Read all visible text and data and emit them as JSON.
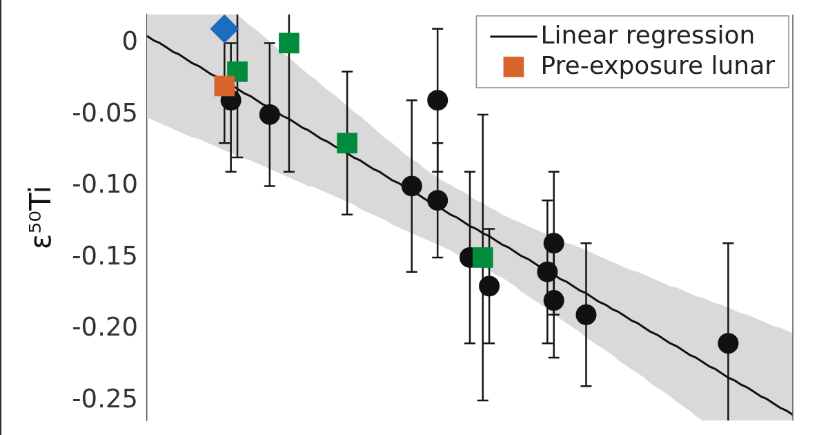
{
  "chart_data": {
    "type": "scatter",
    "ylabel": "ε⁵⁰Ti",
    "categories": [
      null,
      null,
      null,
      null,
      null,
      null,
      null,
      null,
      null,
      null,
      null,
      null,
      null,
      null,
      null,
      null,
      null,
      null,
      null,
      null,
      null,
      null,
      null,
      null,
      null,
      null,
      null,
      null,
      null,
      null,
      null,
      null,
      null,
      null,
      null,
      null,
      null,
      null,
      null,
      null,
      null,
      null,
      null,
      null,
      null,
      null,
      null,
      null,
      null,
      null,
      null,
      null,
      null,
      null,
      null,
      null,
      null,
      null,
      null,
      null,
      null,
      null,
      null,
      null,
      null,
      null,
      null,
      null,
      null,
      null,
      null,
      null,
      null,
      null,
      null,
      null,
      null,
      null,
      null,
      null,
      null,
      null,
      null,
      null,
      null,
      null,
      null,
      null,
      null,
      null,
      null,
      null,
      null,
      null,
      null,
      null,
      null,
      null,
      null,
      null,
      null
    ],
    "ylim": [
      -0.264,
      0.02
    ],
    "yticks": [
      0,
      -0.05,
      {
        "value": -0.1,
        "label": "-0.10"
      },
      -0.15,
      {
        "value": -0.2,
        "label": "-0.20"
      },
      -0.25
    ],
    "tick_labels": "y",
    "grid": false,
    "legend": "top right",
    "series": [
      {
        "name": "Linear regression",
        "type": "line",
        "color": "#111111",
        "marker": "none",
        "line_style": "solid",
        "values": [
          0.005,
          0.002,
          0,
          -0.003,
          -0.006,
          -0.008,
          -0.011,
          -0.014,
          -0.016,
          -0.019,
          -0.022,
          -0.024,
          null,
          null,
          -0.032,
          -0.035,
          -0.037,
          -0.04,
          -0.043,
          -0.045,
          -0.048,
          -0.051,
          -0.053,
          -0.056,
          -0.059,
          -0.061,
          -0.064,
          -0.067,
          -0.069,
          -0.072,
          null,
          -0.077,
          -0.08,
          -0.082,
          -0.085,
          -0.088,
          -0.09,
          -0.093,
          -0.096,
          -0.098,
          -0.101,
          -0.104,
          -0.106,
          -0.109,
          -0.112,
          -0.114,
          -0.117,
          -0.12,
          -0.122,
          -0.125,
          -0.128,
          -0.13,
          -0.133,
          -0.135,
          -0.138,
          -0.141,
          -0.143,
          -0.146,
          -0.149,
          -0.151,
          -0.154,
          -0.157,
          -0.159,
          -0.162,
          -0.165,
          -0.167,
          -0.17,
          -0.173,
          -0.175,
          -0.178,
          -0.181,
          -0.183,
          -0.186,
          -0.188,
          -0.191,
          -0.194,
          -0.196,
          -0.199,
          -0.202,
          -0.204,
          -0.207,
          -0.21,
          -0.212,
          -0.215,
          -0.218,
          -0.22,
          -0.223,
          -0.226,
          -0.228,
          -0.231,
          -0.234,
          -0.236,
          -0.239,
          -0.241,
          -0.244,
          -0.247,
          -0.249,
          -0.252,
          -0.255,
          -0.257,
          -0.26
        ],
        "upper": [
          0.02,
          0.02,
          0.02,
          0.02,
          0.02,
          0.02,
          0.02,
          0.02,
          0.02,
          0.02,
          0.02,
          0.02,
          0.02,
          0.02,
          0.02,
          0.016,
          0.012,
          0.009,
          0.005,
          0.001,
          -0.003,
          -0.007,
          -0.01,
          -0.014,
          -0.018,
          -0.022,
          -0.025,
          -0.029,
          -0.033,
          -0.036,
          -0.04,
          -0.044,
          -0.048,
          -0.051,
          -0.055,
          -0.059,
          -0.063,
          -0.067,
          -0.07,
          -0.074,
          -0.078,
          -0.081,
          -0.084,
          -0.088,
          -0.091,
          -0.094,
          -0.097,
          -0.099,
          -0.102,
          -0.104,
          -0.107,
          -0.11,
          -0.112,
          -0.115,
          -0.117,
          -0.12,
          -0.122,
          -0.124,
          -0.126,
          -0.128,
          -0.13,
          -0.132,
          -0.134,
          -0.136,
          -0.138,
          -0.14,
          -0.141,
          -0.143,
          -0.145,
          -0.147,
          -0.149,
          -0.151,
          -0.153,
          -0.155,
          -0.157,
          -0.159,
          -0.16,
          -0.162,
          -0.164,
          -0.166,
          -0.168,
          -0.17,
          -0.171,
          -0.173,
          -0.175,
          -0.177,
          -0.178,
          -0.18,
          -0.182,
          -0.183,
          -0.185,
          -0.187,
          -0.189,
          -0.19,
          -0.192,
          -0.194,
          -0.196,
          -0.198,
          -0.199,
          -0.201,
          -0.203
        ],
        "lower": [
          -0.052,
          -0.054,
          -0.056,
          -0.058,
          -0.06,
          -0.062,
          -0.064,
          -0.066,
          -0.067,
          -0.069,
          -0.071,
          -0.073,
          -0.075,
          -0.077,
          -0.079,
          -0.081,
          -0.082,
          -0.084,
          -0.086,
          -0.088,
          -0.09,
          -0.092,
          -0.094,
          -0.096,
          -0.098,
          -0.1,
          -0.101,
          -0.103,
          -0.105,
          -0.107,
          -0.109,
          -0.111,
          -0.113,
          -0.116,
          -0.118,
          -0.12,
          -0.122,
          -0.124,
          -0.127,
          -0.129,
          -0.131,
          -0.133,
          -0.135,
          -0.137,
          -0.139,
          -0.141,
          -0.143,
          -0.145,
          -0.148,
          -0.15,
          -0.152,
          -0.154,
          -0.157,
          -0.159,
          -0.162,
          -0.164,
          -0.167,
          -0.17,
          -0.174,
          -0.177,
          -0.18,
          -0.183,
          -0.186,
          -0.19,
          -0.193,
          -0.196,
          -0.199,
          -0.202,
          -0.206,
          -0.209,
          -0.212,
          -0.215,
          -0.218,
          -0.222,
          -0.225,
          -0.228,
          -0.231,
          -0.234,
          -0.238,
          -0.241,
          -0.244,
          -0.247,
          -0.251,
          -0.254,
          -0.257,
          -0.261,
          -0.264,
          -0.264,
          -0.264,
          -0.264,
          -0.264,
          -0.264,
          -0.264,
          -0.264,
          -0.264,
          -0.264,
          -0.264,
          -0.264,
          -0.264,
          -0.264,
          -0.264
        ]
      },
      {
        "color": "#111111",
        "marker": "circle",
        "values": [
          null,
          null,
          null,
          null,
          null,
          null,
          null,
          null,
          null,
          null,
          null,
          null,
          null,
          -0.04,
          null,
          null,
          null,
          null,
          null,
          -0.05,
          null,
          null,
          null,
          null,
          null,
          null,
          null,
          null,
          null,
          null,
          null,
          null,
          null,
          null,
          null,
          null,
          null,
          null,
          null,
          null,
          null,
          -0.1,
          null,
          null,
          null,
          -0.04,
          null,
          null,
          null,
          null,
          -0.15,
          null,
          null,
          -0.17,
          null,
          null,
          null,
          null,
          null,
          null,
          null,
          null,
          -0.16,
          -0.14,
          null,
          null,
          null,
          null,
          -0.19,
          null,
          null,
          null,
          null,
          null,
          null,
          null,
          null,
          null,
          null,
          null,
          null,
          null,
          null,
          null,
          null,
          null,
          null,
          null,
          null,
          null,
          -0.21,
          null,
          null,
          null,
          null,
          null,
          null,
          null,
          null,
          null,
          null
        ],
        "errors": [
          null,
          null,
          null,
          null,
          null,
          null,
          null,
          null,
          null,
          null,
          null,
          null,
          null,
          [
            -0.09,
            0
          ],
          null,
          null,
          null,
          null,
          null,
          0.05,
          null,
          null,
          null,
          null,
          null,
          null,
          null,
          null,
          null,
          null,
          null,
          null,
          null,
          null,
          null,
          null,
          null,
          null,
          null,
          null,
          null,
          0.06,
          null,
          null,
          null,
          0.05,
          null,
          null,
          null,
          null,
          0.06,
          null,
          null,
          0.04,
          null,
          null,
          null,
          null,
          null,
          null,
          null,
          null,
          0.05,
          0.05,
          null,
          null,
          null,
          null,
          0.05,
          null,
          null,
          null,
          null,
          null,
          null,
          null,
          null,
          null,
          null,
          null,
          null,
          null,
          null,
          null,
          null,
          null,
          null,
          null,
          null,
          null,
          [
            -0.264,
            -0.14
          ],
          null,
          null,
          null,
          null,
          null,
          null,
          null,
          null,
          null,
          null
        ]
      },
      {
        "color": "#111111",
        "marker": "circle",
        "values": [
          null,
          null,
          null,
          null,
          null,
          null,
          null,
          null,
          null,
          null,
          null,
          null,
          null,
          null,
          null,
          null,
          null,
          null,
          null,
          null,
          null,
          null,
          null,
          null,
          null,
          null,
          null,
          null,
          null,
          null,
          null,
          null,
          null,
          null,
          null,
          null,
          null,
          null,
          null,
          null,
          null,
          null,
          null,
          null,
          null,
          -0.11,
          null,
          null,
          null,
          null,
          null,
          null,
          null,
          null,
          null,
          null,
          null,
          null,
          null,
          null,
          null,
          null,
          null,
          -0.18,
          null,
          null,
          null,
          null,
          null,
          null,
          null,
          null,
          null,
          null,
          null,
          null,
          null,
          null,
          null,
          null,
          null,
          null,
          null,
          null,
          null,
          null,
          null,
          null,
          null,
          null,
          null,
          null,
          null,
          null,
          null,
          null,
          null,
          null,
          null,
          null,
          null
        ],
        "errors": [
          null,
          null,
          null,
          null,
          null,
          null,
          null,
          null,
          null,
          null,
          null,
          null,
          null,
          null,
          null,
          null,
          null,
          null,
          null,
          null,
          null,
          null,
          null,
          null,
          null,
          null,
          null,
          null,
          null,
          null,
          null,
          null,
          null,
          null,
          null,
          null,
          null,
          null,
          null,
          null,
          null,
          null,
          null,
          null,
          null,
          0.04,
          null,
          null,
          null,
          null,
          null,
          null,
          null,
          null,
          null,
          null,
          null,
          null,
          null,
          null,
          null,
          null,
          null,
          0.04,
          null,
          null,
          null,
          null,
          null,
          null,
          null,
          null,
          null,
          null,
          null,
          null,
          null,
          null,
          null,
          null,
          null,
          null,
          null,
          null,
          null,
          null,
          null,
          null,
          null,
          null,
          null,
          null,
          null,
          null,
          null,
          null,
          null,
          null,
          null,
          null,
          null
        ]
      },
      {
        "color": "#008c3c",
        "marker": "square",
        "values": [
          null,
          null,
          null,
          null,
          null,
          null,
          null,
          null,
          null,
          null,
          null,
          null,
          null,
          null,
          -0.02,
          null,
          null,
          null,
          null,
          null,
          null,
          null,
          0,
          null,
          null,
          null,
          null,
          null,
          null,
          null,
          null,
          -0.07,
          null,
          null,
          null,
          null,
          null,
          null,
          null,
          null,
          null,
          null,
          null,
          null,
          null,
          null,
          null,
          null,
          null,
          null,
          null,
          null,
          -0.15,
          null,
          null,
          null,
          null,
          null,
          null,
          null,
          null,
          null,
          null,
          null,
          null,
          null,
          null,
          null,
          null,
          null,
          null,
          null,
          null,
          null,
          null,
          null,
          null,
          null,
          null,
          null,
          null,
          null,
          null,
          null,
          null,
          null,
          null,
          null,
          null,
          null,
          null,
          null,
          null,
          null,
          null,
          null,
          null,
          null,
          null,
          null,
          null
        ],
        "errors": [
          null,
          null,
          null,
          null,
          null,
          null,
          null,
          null,
          null,
          null,
          null,
          null,
          null,
          null,
          [
            -0.08,
            0.02
          ],
          null,
          null,
          null,
          null,
          null,
          null,
          null,
          [
            -0.09,
            0.02
          ],
          null,
          null,
          null,
          null,
          null,
          null,
          null,
          null,
          0.05,
          null,
          null,
          null,
          null,
          null,
          null,
          null,
          null,
          null,
          null,
          null,
          null,
          null,
          null,
          null,
          null,
          null,
          null,
          null,
          null,
          0.1,
          null,
          null,
          null,
          null,
          null,
          null,
          null,
          null,
          null,
          null,
          null,
          null,
          null,
          null,
          null,
          null,
          null,
          null,
          null,
          null,
          null,
          null,
          null,
          null,
          null,
          null,
          null,
          null,
          null,
          null,
          null,
          null,
          null,
          null,
          null,
          null,
          null,
          null,
          null,
          null,
          null,
          null,
          null,
          null,
          null,
          null,
          null,
          null
        ]
      },
      {
        "name": "Pre-exposure lunar",
        "color": "#d7642d",
        "marker": "square",
        "values": [
          null,
          null,
          null,
          null,
          null,
          null,
          null,
          null,
          null,
          null,
          null,
          null,
          -0.03,
          null,
          null,
          null,
          null,
          null,
          null,
          null,
          null,
          null,
          null,
          null,
          null,
          null,
          null,
          null,
          null,
          null,
          null,
          null,
          null,
          null,
          null,
          null,
          null,
          null,
          null,
          null,
          null,
          null,
          null,
          null,
          null,
          null,
          null,
          null,
          null,
          null,
          null,
          null,
          null,
          null,
          null,
          null,
          null,
          null,
          null,
          null,
          null,
          null,
          null,
          null,
          null,
          null,
          null,
          null,
          null,
          null,
          null,
          null,
          null,
          null,
          null,
          null,
          null,
          null,
          null,
          null,
          null,
          null,
          null,
          null,
          null,
          null,
          null,
          null,
          null,
          null,
          null,
          null,
          null,
          null,
          null,
          null,
          null,
          null,
          null,
          null,
          null
        ],
        "errors": [
          null,
          null,
          null,
          null,
          null,
          null,
          null,
          null,
          null,
          null,
          null,
          null,
          0.04,
          null,
          null,
          null,
          null,
          null,
          null,
          null,
          null,
          null,
          null,
          null,
          null,
          null,
          null,
          null,
          null,
          null,
          null,
          null,
          null,
          null,
          null,
          null,
          null,
          null,
          null,
          null,
          null,
          null,
          null,
          null,
          null,
          null,
          null,
          null,
          null,
          null,
          null,
          null,
          null,
          null,
          null,
          null,
          null,
          null,
          null,
          null,
          null,
          null,
          null,
          null,
          null,
          null,
          null,
          null,
          null,
          null,
          null,
          null,
          null,
          null,
          null,
          null,
          null,
          null,
          null,
          null,
          null,
          null,
          null,
          null,
          null,
          null,
          null,
          null,
          null,
          null,
          null,
          null,
          null,
          null,
          null,
          null,
          null,
          null,
          null,
          null,
          null
        ]
      },
      {
        "color": "#1b6ebe",
        "marker": "diamond",
        "values": [
          null,
          null,
          null,
          null,
          null,
          null,
          null,
          null,
          null,
          null,
          null,
          null,
          0.01,
          null,
          null,
          null,
          null,
          null,
          null,
          null,
          null,
          null,
          null,
          null,
          null,
          null,
          null,
          null,
          null,
          null,
          null,
          null,
          null,
          null,
          null,
          null,
          null,
          null,
          null,
          null,
          null,
          null,
          null,
          null,
          null,
          null,
          null,
          null,
          null,
          null,
          null,
          null,
          null,
          null,
          null,
          null,
          null,
          null,
          null,
          null,
          null,
          null,
          null,
          null,
          null,
          null,
          null,
          null,
          null,
          null,
          null,
          null,
          null,
          null,
          null,
          null,
          null,
          null,
          null,
          null,
          null,
          null,
          null,
          null,
          null,
          null,
          null,
          null,
          null,
          null,
          null,
          null,
          null,
          null,
          null,
          null,
          null,
          null,
          null,
          null,
          null
        ]
      }
    ]
  }
}
